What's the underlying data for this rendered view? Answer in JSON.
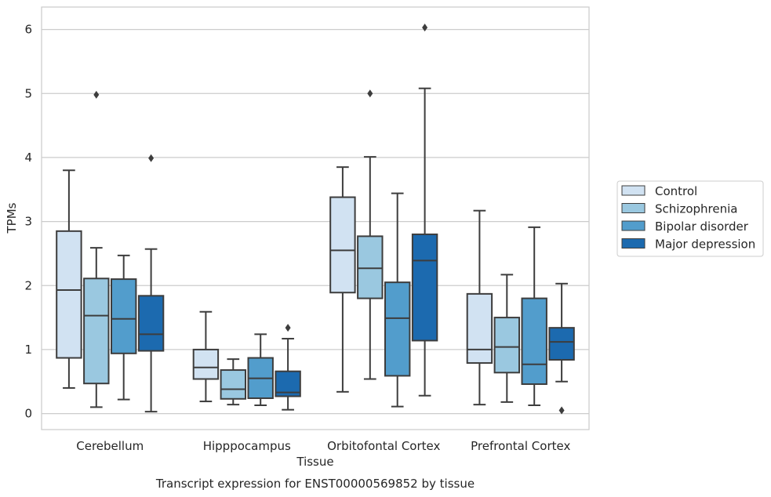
{
  "chart_data": {
    "type": "boxplot",
    "xlabel": "Tissue",
    "ylabel": "TPMs",
    "caption": "Transcript expression for ENST00000569852 by tissue",
    "categories": [
      "Cerebellum",
      "Hipppocampus",
      "Orbitofontal Cortex",
      "Prefrontal Cortex"
    ],
    "ylim": [
      -0.25,
      6.35
    ],
    "yticks": [
      "0",
      "1",
      "2",
      "3",
      "4",
      "5",
      "6"
    ],
    "grid": true,
    "legend_position": "right",
    "series": [
      {
        "name": "Control",
        "color": "#d1e2f2",
        "boxes": [
          {
            "whislo": 0.4,
            "q1": 0.87,
            "med": 1.93,
            "q3": 2.85,
            "whishi": 3.8,
            "fliers": []
          },
          {
            "whislo": 0.19,
            "q1": 0.54,
            "med": 0.72,
            "q3": 1.0,
            "whishi": 1.59,
            "fliers": []
          },
          {
            "whislo": 0.34,
            "q1": 1.89,
            "med": 2.55,
            "q3": 3.38,
            "whishi": 3.85,
            "fliers": []
          },
          {
            "whislo": 0.14,
            "q1": 0.79,
            "med": 1.0,
            "q3": 1.87,
            "whishi": 3.17,
            "fliers": []
          }
        ]
      },
      {
        "name": "Schizophrenia",
        "color": "#9ac8e0",
        "boxes": [
          {
            "whislo": 0.1,
            "q1": 0.47,
            "med": 1.53,
            "q3": 2.11,
            "whishi": 2.59,
            "fliers": [
              4.98
            ]
          },
          {
            "whislo": 0.14,
            "q1": 0.23,
            "med": 0.38,
            "q3": 0.68,
            "whishi": 0.85,
            "fliers": []
          },
          {
            "whislo": 0.54,
            "q1": 1.8,
            "med": 2.27,
            "q3": 2.77,
            "whishi": 4.01,
            "fliers": [
              5.0
            ]
          },
          {
            "whislo": 0.18,
            "q1": 0.64,
            "med": 1.04,
            "q3": 1.5,
            "whishi": 2.17,
            "fliers": []
          }
        ]
      },
      {
        "name": "Bipolar disorder",
        "color": "#529dcc",
        "boxes": [
          {
            "whislo": 0.22,
            "q1": 0.94,
            "med": 1.48,
            "q3": 2.1,
            "whishi": 2.47,
            "fliers": []
          },
          {
            "whislo": 0.13,
            "q1": 0.24,
            "med": 0.55,
            "q3": 0.87,
            "whishi": 1.24,
            "fliers": []
          },
          {
            "whislo": 0.11,
            "q1": 0.59,
            "med": 1.49,
            "q3": 2.05,
            "whishi": 3.44,
            "fliers": []
          },
          {
            "whislo": 0.13,
            "q1": 0.46,
            "med": 0.77,
            "q3": 1.8,
            "whishi": 2.91,
            "fliers": []
          }
        ]
      },
      {
        "name": "Major depression",
        "color": "#1c6aaf",
        "boxes": [
          {
            "whislo": 0.03,
            "q1": 0.98,
            "med": 1.24,
            "q3": 1.84,
            "whishi": 2.57,
            "fliers": [
              3.99
            ]
          },
          {
            "whislo": 0.06,
            "q1": 0.27,
            "med": 0.33,
            "q3": 0.66,
            "whishi": 1.17,
            "fliers": [
              1.34
            ]
          },
          {
            "whislo": 0.28,
            "q1": 1.14,
            "med": 2.39,
            "q3": 2.8,
            "whishi": 5.08,
            "fliers": [
              6.03
            ]
          },
          {
            "whislo": 0.5,
            "q1": 0.84,
            "med": 1.12,
            "q3": 1.34,
            "whishi": 2.03,
            "fliers": [
              0.05
            ]
          }
        ]
      }
    ]
  }
}
